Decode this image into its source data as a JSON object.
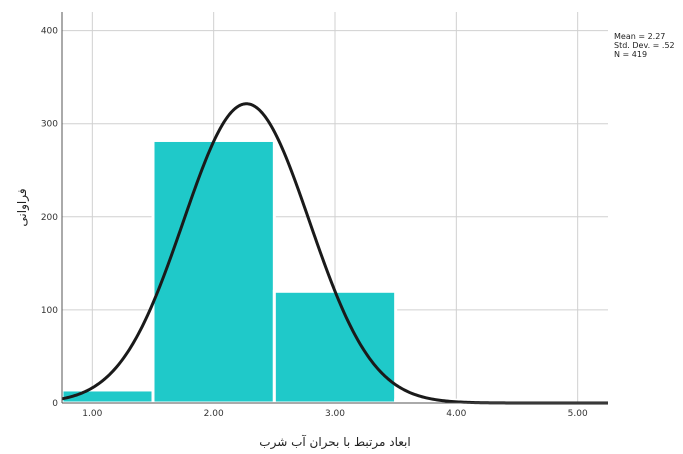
{
  "chart_data": {
    "type": "bar",
    "subtype": "histogram-with-normal-curve",
    "bins": [
      {
        "x_start": 0.75,
        "x_end": 1.5,
        "count": 14
      },
      {
        "x_start": 1.5,
        "x_end": 2.5,
        "count": 282
      },
      {
        "x_start": 2.5,
        "x_end": 3.5,
        "count": 120
      },
      {
        "x_start": 3.5,
        "x_end": 4.0,
        "count": 3
      }
    ],
    "normal_curve": {
      "mean": 2.27,
      "sd": 0.52,
      "n": 419,
      "bin_width": 1.0
    },
    "xlim": [
      0.75,
      5.25
    ],
    "ylim": [
      0,
      420
    ],
    "x_ticks": [
      {
        "value": 1,
        "label": "1.00"
      },
      {
        "value": 2,
        "label": "2.00"
      },
      {
        "value": 3,
        "label": "3.00"
      },
      {
        "value": 4,
        "label": "4.00"
      },
      {
        "value": 5,
        "label": "5.00"
      }
    ],
    "y_ticks": [
      {
        "value": 0,
        "label": "0"
      },
      {
        "value": 100,
        "label": "100"
      },
      {
        "value": 200,
        "label": "200"
      },
      {
        "value": 300,
        "label": "300"
      },
      {
        "value": 400,
        "label": "400"
      }
    ],
    "xlabel": "ابعاد مرتبط با بحران آب شرب",
    "ylabel": "فراوانی",
    "stats_lines": [
      "Mean = 2.27",
      "Std. Dev. = .52",
      "N = 419"
    ],
    "grid": true,
    "bar_color": "#1fc9c9",
    "bar_edge_color": "#ffffff",
    "curve_color": "#1a1a1a"
  }
}
